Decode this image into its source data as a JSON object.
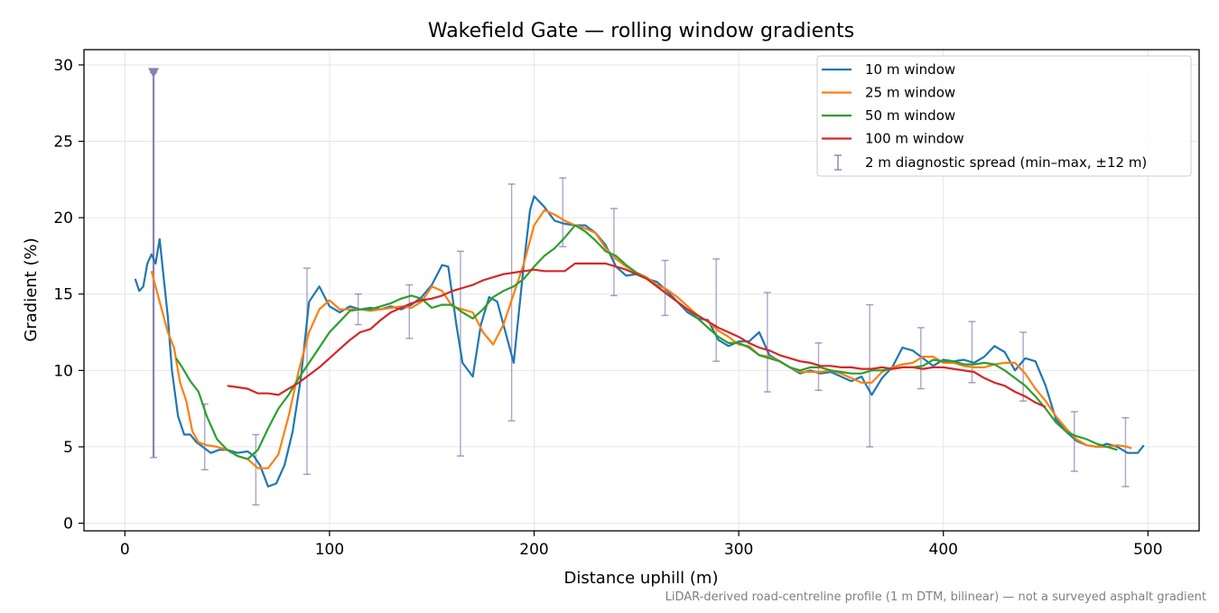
{
  "chart_data": {
    "type": "line",
    "title": "Wakefield Gate — rolling window gradients",
    "xlabel": "Distance uphill (m)",
    "ylabel": "Gradient (%)",
    "footnote": "LiDAR-derived road-centreline profile (1 m DTM, bilinear) — not a surveyed asphalt gradient",
    "xlim": [
      -20,
      525
    ],
    "ylim": [
      -0.5,
      31
    ],
    "xticks": [
      0,
      100,
      200,
      300,
      400,
      500
    ],
    "yticks": [
      0,
      5,
      10,
      15,
      20,
      25,
      30
    ],
    "grid": true,
    "legend_position": "upper right",
    "series": [
      {
        "name": "10 m window",
        "color": "#1f77b4",
        "x": [
          5,
          7,
          9,
          11,
          13,
          15,
          17,
          19,
          21,
          23,
          26,
          29,
          32,
          35,
          38,
          42,
          46,
          50,
          55,
          60,
          63,
          66,
          70,
          74,
          78,
          82,
          86,
          90,
          95,
          100,
          105,
          110,
          115,
          120,
          125,
          130,
          135,
          140,
          145,
          150,
          155,
          158,
          162,
          165,
          170,
          174,
          178,
          182,
          186,
          190,
          195,
          198,
          200,
          205,
          210,
          215,
          220,
          225,
          230,
          235,
          240,
          245,
          250,
          255,
          260,
          265,
          270,
          275,
          280,
          285,
          290,
          295,
          300,
          305,
          310,
          315,
          320,
          325,
          330,
          335,
          340,
          345,
          350,
          355,
          360,
          365,
          370,
          375,
          380,
          385,
          390,
          395,
          400,
          405,
          410,
          415,
          420,
          425,
          430,
          435,
          440,
          445,
          450,
          455,
          460,
          465,
          470,
          475,
          480,
          485,
          490,
          495,
          498
        ],
        "y": [
          16.0,
          15.2,
          15.5,
          17.0,
          17.6,
          17.0,
          18.6,
          16.0,
          13.5,
          10.0,
          7.0,
          5.8,
          5.8,
          5.3,
          5.0,
          4.6,
          4.8,
          4.8,
          4.6,
          4.7,
          4.4,
          3.8,
          2.4,
          2.6,
          3.8,
          6.0,
          9.5,
          14.5,
          15.5,
          14.2,
          13.8,
          14.2,
          14.0,
          14.1,
          14.0,
          14.2,
          14.0,
          14.3,
          14.8,
          15.6,
          16.9,
          16.8,
          13.0,
          10.5,
          9.6,
          13.0,
          14.8,
          14.5,
          12.5,
          10.5,
          17.0,
          20.5,
          21.4,
          20.7,
          19.8,
          19.6,
          19.5,
          19.5,
          19.0,
          18.2,
          16.8,
          16.2,
          16.3,
          16.0,
          15.8,
          15.2,
          14.5,
          13.8,
          13.4,
          13.3,
          12.0,
          11.6,
          11.9,
          11.9,
          12.5,
          11.0,
          10.6,
          10.2,
          9.8,
          10.0,
          9.8,
          9.9,
          9.6,
          9.3,
          9.6,
          8.4,
          9.5,
          10.2,
          11.5,
          11.3,
          10.8,
          10.3,
          10.7,
          10.6,
          10.7,
          10.5,
          10.9,
          11.6,
          11.2,
          10.0,
          10.8,
          10.6,
          9.0,
          6.8,
          6.0,
          5.4,
          5.1,
          5.0,
          5.2,
          5.0,
          4.6,
          4.6,
          5.1
        ]
      },
      {
        "name": "25 m window",
        "color": "#ff7f0e",
        "x": [
          13,
          15,
          18,
          21,
          24,
          27,
          30,
          33,
          36,
          40,
          45,
          50,
          55,
          60,
          65,
          70,
          75,
          80,
          85,
          90,
          95,
          100,
          105,
          110,
          115,
          120,
          125,
          130,
          135,
          140,
          145,
          150,
          155,
          160,
          165,
          170,
          175,
          180,
          185,
          190,
          195,
          200,
          205,
          210,
          215,
          220,
          225,
          230,
          235,
          240,
          245,
          250,
          255,
          260,
          265,
          270,
          275,
          280,
          285,
          290,
          295,
          300,
          305,
          310,
          315,
          320,
          325,
          330,
          335,
          340,
          345,
          350,
          355,
          360,
          365,
          370,
          375,
          380,
          385,
          390,
          395,
          400,
          405,
          410,
          415,
          420,
          425,
          430,
          435,
          440,
          445,
          450,
          455,
          460,
          465,
          470,
          475,
          480,
          485,
          490,
          492
        ],
        "y": [
          16.5,
          15.5,
          14.0,
          12.5,
          11.5,
          9.2,
          8.0,
          6.0,
          5.3,
          5.1,
          5.0,
          4.8,
          4.4,
          4.2,
          3.6,
          3.6,
          4.5,
          7.0,
          10.0,
          12.5,
          14.0,
          14.6,
          14.0,
          14.0,
          14.0,
          13.9,
          14.0,
          14.1,
          14.2,
          14.1,
          14.5,
          15.5,
          15.2,
          14.2,
          14.0,
          13.8,
          12.5,
          11.7,
          13.0,
          15.0,
          17.0,
          19.5,
          20.5,
          20.2,
          19.8,
          19.5,
          19.3,
          19.0,
          18.0,
          17.3,
          16.8,
          16.4,
          16.1,
          15.6,
          15.3,
          14.8,
          14.2,
          13.6,
          13.2,
          12.6,
          12.2,
          11.7,
          11.6,
          11.0,
          10.9,
          10.6,
          10.2,
          9.9,
          9.9,
          9.9,
          10.0,
          9.8,
          9.5,
          9.2,
          9.2,
          9.9,
          10.2,
          10.4,
          10.5,
          10.9,
          10.9,
          10.5,
          10.5,
          10.3,
          10.2,
          10.2,
          10.4,
          10.5,
          10.5,
          9.8,
          8.8,
          8.0,
          7.0,
          6.2,
          5.5,
          5.1,
          5.0,
          5.0,
          5.1,
          5.0,
          4.9
        ]
      },
      {
        "name": "50 m window",
        "color": "#2ca02c",
        "x": [
          25,
          28,
          32,
          36,
          40,
          45,
          50,
          55,
          60,
          65,
          70,
          75,
          80,
          85,
          90,
          95,
          100,
          105,
          110,
          115,
          120,
          125,
          130,
          135,
          140,
          145,
          150,
          155,
          160,
          165,
          170,
          175,
          180,
          185,
          190,
          195,
          200,
          205,
          210,
          215,
          220,
          225,
          230,
          235,
          240,
          245,
          250,
          255,
          260,
          265,
          270,
          275,
          280,
          285,
          290,
          295,
          300,
          305,
          310,
          315,
          320,
          325,
          330,
          335,
          340,
          345,
          350,
          355,
          360,
          365,
          370,
          375,
          380,
          385,
          390,
          395,
          400,
          405,
          410,
          415,
          420,
          425,
          430,
          435,
          440,
          445,
          450,
          455,
          460,
          465,
          470,
          475,
          480,
          485
        ],
        "y": [
          10.8,
          10.2,
          9.3,
          8.6,
          7.0,
          5.5,
          4.8,
          4.4,
          4.2,
          4.8,
          6.2,
          7.5,
          8.4,
          9.5,
          10.5,
          11.5,
          12.5,
          13.2,
          13.9,
          14.0,
          14.0,
          14.2,
          14.4,
          14.7,
          14.9,
          14.7,
          14.1,
          14.3,
          14.3,
          13.8,
          13.4,
          14.0,
          14.8,
          15.2,
          15.5,
          16.0,
          16.8,
          17.5,
          18.0,
          18.7,
          19.5,
          19.1,
          18.5,
          17.8,
          17.5,
          16.9,
          16.4,
          16.0,
          15.5,
          15.0,
          14.5,
          14.0,
          13.4,
          12.8,
          12.2,
          11.8,
          11.8,
          11.5,
          11.0,
          10.8,
          10.6,
          10.2,
          10.0,
          10.2,
          10.2,
          10.0,
          9.9,
          9.8,
          9.8,
          10.0,
          10.0,
          10.1,
          10.2,
          10.2,
          10.3,
          10.7,
          10.6,
          10.6,
          10.4,
          10.4,
          10.5,
          10.4,
          10.0,
          9.5,
          9.0,
          8.3,
          7.5,
          6.6,
          6.0,
          5.7,
          5.5,
          5.2,
          5.0,
          4.8
        ]
      },
      {
        "name": "100 m window",
        "color": "#d62728",
        "x": [
          50,
          55,
          60,
          65,
          70,
          75,
          80,
          85,
          90,
          95,
          100,
          105,
          110,
          115,
          120,
          125,
          130,
          135,
          140,
          145,
          150,
          155,
          160,
          165,
          170,
          175,
          180,
          185,
          190,
          195,
          200,
          205,
          210,
          215,
          220,
          225,
          230,
          235,
          240,
          245,
          250,
          255,
          260,
          265,
          270,
          275,
          280,
          285,
          290,
          295,
          300,
          305,
          310,
          315,
          320,
          325,
          330,
          335,
          340,
          345,
          350,
          355,
          360,
          365,
          370,
          375,
          380,
          385,
          390,
          395,
          400,
          405,
          410,
          415,
          420,
          425,
          430,
          435,
          440,
          445,
          450
        ],
        "y": [
          9.0,
          8.9,
          8.8,
          8.5,
          8.5,
          8.4,
          8.8,
          9.2,
          9.7,
          10.2,
          10.8,
          11.4,
          12.0,
          12.5,
          12.7,
          13.3,
          13.8,
          14.1,
          14.4,
          14.6,
          14.7,
          14.9,
          15.2,
          15.4,
          15.6,
          15.9,
          16.1,
          16.3,
          16.4,
          16.5,
          16.6,
          16.5,
          16.5,
          16.5,
          17.0,
          17.0,
          17.0,
          17.0,
          16.8,
          16.6,
          16.3,
          16.0,
          15.5,
          15.0,
          14.5,
          14.0,
          13.6,
          13.2,
          12.8,
          12.5,
          12.2,
          11.8,
          11.5,
          11.3,
          11.0,
          10.8,
          10.6,
          10.5,
          10.3,
          10.3,
          10.2,
          10.2,
          10.1,
          10.1,
          10.2,
          10.1,
          10.2,
          10.2,
          10.1,
          10.2,
          10.2,
          10.1,
          10.0,
          9.9,
          9.5,
          9.2,
          9.0,
          8.6,
          8.3,
          7.9,
          7.6
        ]
      }
    ],
    "errorbar_series": {
      "name": "2 m diagnostic spread (min–max, ±12 m)",
      "color": "#8c7fb3",
      "points": [
        {
          "x": 14,
          "low": 4.3,
          "high": 29.5
        },
        {
          "x": 39,
          "low": 3.5,
          "high": 7.8
        },
        {
          "x": 64,
          "low": 1.2,
          "high": 5.8
        },
        {
          "x": 89,
          "low": 3.2,
          "high": 16.7
        },
        {
          "x": 114,
          "low": 13.0,
          "high": 15.0
        },
        {
          "x": 139,
          "low": 12.1,
          "high": 15.6
        },
        {
          "x": 164,
          "low": 4.4,
          "high": 17.8
        },
        {
          "x": 189,
          "low": 6.7,
          "high": 22.2
        },
        {
          "x": 214,
          "low": 18.1,
          "high": 22.6
        },
        {
          "x": 239,
          "low": 14.9,
          "high": 20.6
        },
        {
          "x": 264,
          "low": 13.6,
          "high": 17.2
        },
        {
          "x": 289,
          "low": 10.6,
          "high": 17.3
        },
        {
          "x": 314,
          "low": 8.6,
          "high": 15.1
        },
        {
          "x": 339,
          "low": 8.7,
          "high": 11.8
        },
        {
          "x": 364,
          "low": 5.0,
          "high": 14.3
        },
        {
          "x": 389,
          "low": 8.8,
          "high": 12.8
        },
        {
          "x": 414,
          "low": 9.2,
          "high": 13.2
        },
        {
          "x": 439,
          "low": 8.0,
          "high": 12.5
        },
        {
          "x": 464,
          "low": 3.4,
          "high": 7.3
        },
        {
          "x": 489,
          "low": 2.4,
          "high": 6.9
        }
      ]
    }
  }
}
